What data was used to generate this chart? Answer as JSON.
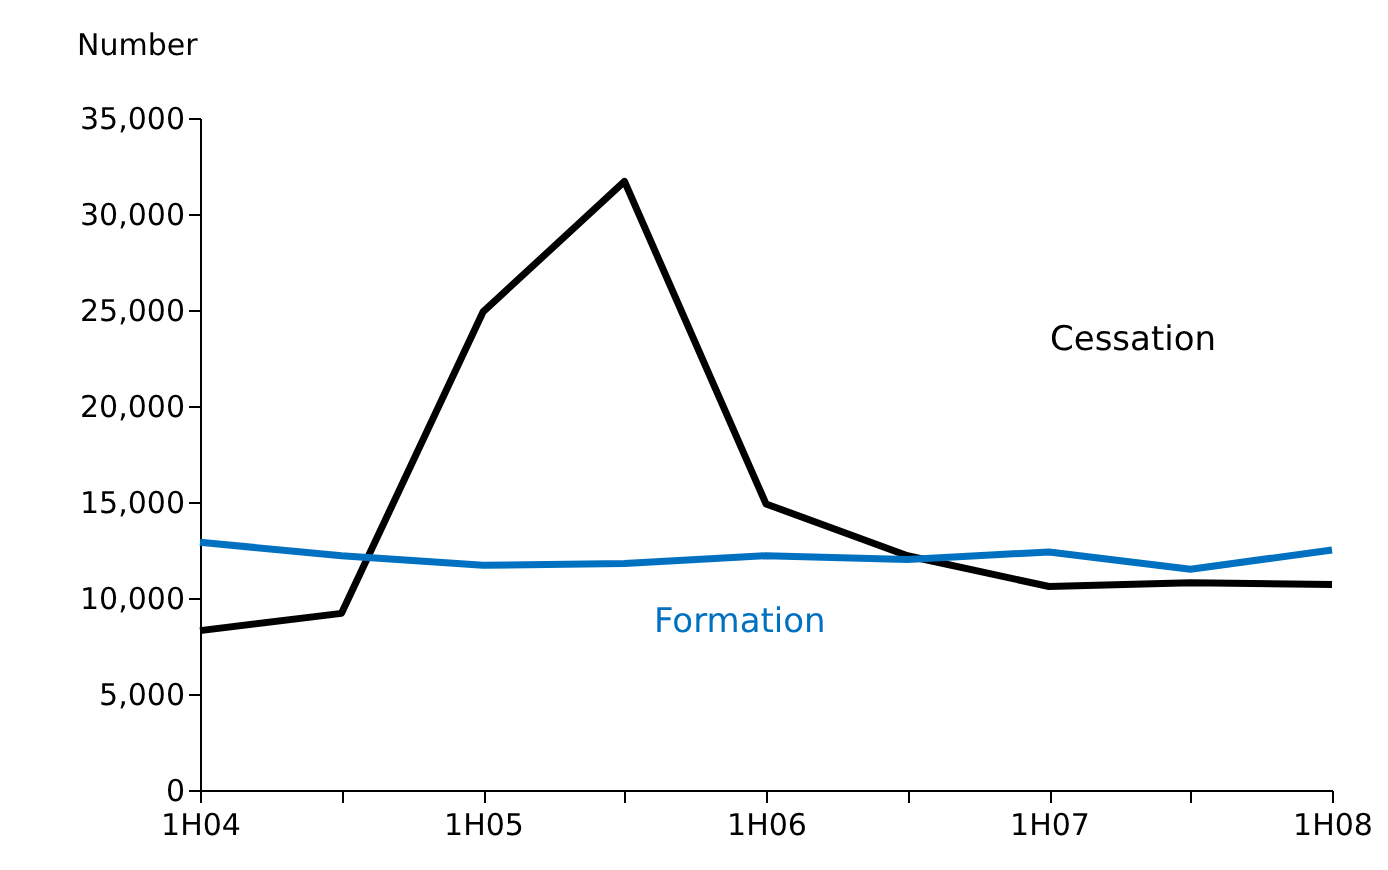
{
  "chart_data": {
    "type": "line",
    "ylabel": "Number",
    "categories": [
      "1H04",
      null,
      "1H05",
      null,
      "1H06",
      null,
      "1H07",
      null,
      "1H08"
    ],
    "series": [
      {
        "name": "Cessation",
        "color": "#000000",
        "values": [
          8300,
          9200,
          24900,
          31700,
          14900,
          12200,
          10600,
          10800,
          10700
        ]
      },
      {
        "name": "Formation",
        "color": "#0070c0",
        "values": [
          12900,
          12200,
          11700,
          11800,
          12200,
          12000,
          12400,
          11500,
          12500
        ]
      }
    ],
    "ylim": [
      0,
      35000
    ],
    "yticks": [
      0,
      {
        "value": 5000,
        "label": "5,000"
      },
      {
        "value": 10000,
        "label": "10,000"
      },
      {
        "value": 15000,
        "label": "15,000"
      },
      {
        "value": 20000,
        "label": "20,000"
      },
      {
        "value": 25000,
        "label": "25,000"
      },
      {
        "value": 30000,
        "label": "30,000"
      },
      {
        "value": 35000,
        "label": "35,000"
      }
    ],
    "grid": false,
    "legend": false,
    "marker": "none",
    "line_style": "solid"
  }
}
